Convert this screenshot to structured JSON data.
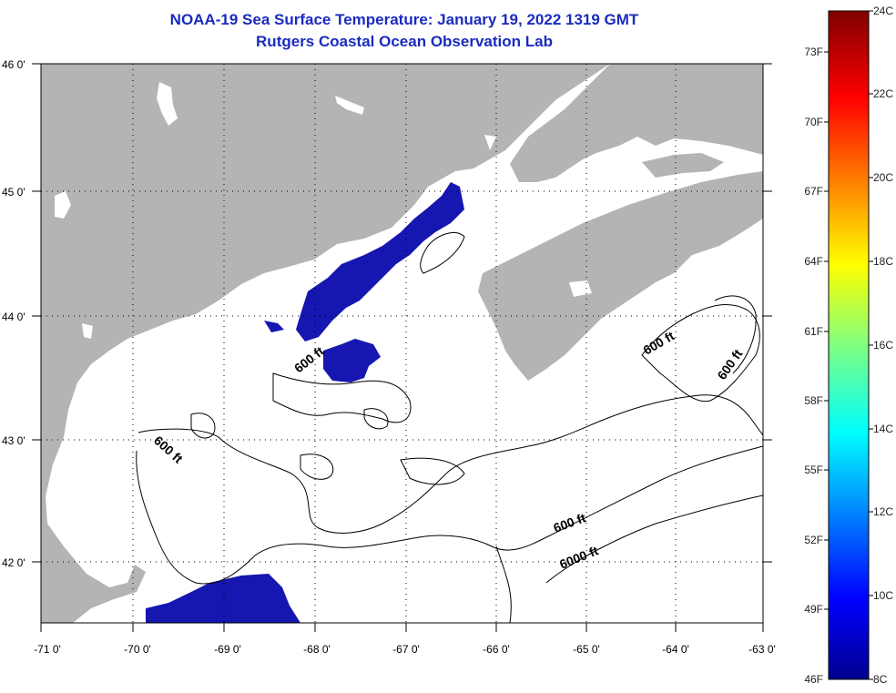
{
  "title": {
    "line1": "NOAA-19 Sea Surface Temperature:  January 19, 2022 1319 GMT",
    "line2": "Rutgers Coastal Ocean Observation Lab"
  },
  "axes": {
    "lon_labels": [
      "-71 0'",
      "-70 0'",
      "-69 0'",
      "-68 0'",
      "-67 0'",
      "-66 0'",
      "-65 0'",
      "-64 0'",
      "-63 0'"
    ],
    "lat_labels": [
      "46 0'",
      "45 0'",
      "44 0'",
      "43 0'",
      "42 0'"
    ]
  },
  "contour_labels": [
    "600 ft",
    "600 ft",
    "600 ft",
    "600 ft",
    "600 ft",
    "6000 ft"
  ],
  "colorbar": {
    "fahrenheit": [
      "73F",
      "70F",
      "67F",
      "64F",
      "61F",
      "58F",
      "55F",
      "52F",
      "49F",
      "46F"
    ],
    "celsius": [
      "24C",
      "22C",
      "20C",
      "18C",
      "16C",
      "14C",
      "12C",
      "10C",
      "8C"
    ]
  },
  "colors": {
    "land": "#b4b4b4",
    "ocean": "#ffffff",
    "cold_water": "#1616b0",
    "title": "#1a2bbf"
  }
}
